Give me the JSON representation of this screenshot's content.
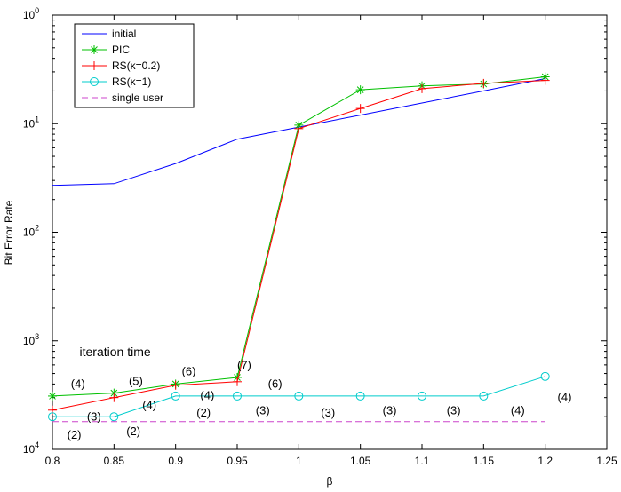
{
  "chart_data": {
    "type": "line",
    "title": "",
    "xlabel": "β",
    "ylabel": "Bit Error Rate",
    "xlim": [
      0.8,
      1.25
    ],
    "ylim": [
      0.0001,
      1
    ],
    "yscale": "log",
    "grid": false,
    "legend_position": "top-left",
    "x_ticks": [
      "0.8",
      "0.85",
      "0.9",
      "0.95",
      "1",
      "1.05",
      "1.1",
      "1.15",
      "1.2",
      "1.25"
    ],
    "y_tick_bases": [
      "10",
      "10",
      "10",
      "10",
      "10"
    ],
    "y_tick_exps": [
      "0",
      "1",
      "2",
      "3",
      "4"
    ],
    "x": [
      0.8,
      0.85,
      0.9,
      0.95,
      1.0,
      1.05,
      1.1,
      1.15,
      1.2
    ],
    "series": [
      {
        "name": "initial",
        "color": "#0000ff",
        "marker": "none",
        "dash": "solid",
        "values": [
          0.027,
          0.028,
          0.043,
          0.072,
          0.093,
          0.12,
          0.155,
          0.2,
          0.26
        ]
      },
      {
        "name": "PIC",
        "color": "#00c000",
        "marker": "star",
        "dash": "solid",
        "values": [
          0.00031,
          0.00033,
          0.0004,
          0.00046,
          0.097,
          0.205,
          0.223,
          0.232,
          0.27
        ]
      },
      {
        "name": "RS(κ=0.2)",
        "color": "#ff0000",
        "marker": "plus",
        "dash": "solid",
        "values": [
          0.00023,
          0.0003,
          0.00039,
          0.00042,
          0.09,
          0.138,
          0.21,
          0.235,
          0.25
        ]
      },
      {
        "name": "RS(κ=1)",
        "color": "#00cccc",
        "marker": "circle",
        "dash": "solid",
        "values": [
          0.0002,
          0.0002,
          0.00031,
          0.00031,
          0.00031,
          0.00031,
          0.00031,
          0.00031,
          0.00047
        ]
      },
      {
        "name": "single user",
        "color": "#cc44cc",
        "marker": "none",
        "dash": "dashed",
        "values": [
          0.00018,
          0.00018,
          0.00018,
          0.00018,
          0.00018,
          0.00018,
          0.00018,
          0.00018,
          0.00018
        ]
      }
    ],
    "annotation_title": "iteration time",
    "annotations": [
      {
        "text": "(4)",
        "x": 0.815,
        "y": 0.00037
      },
      {
        "text": "(5)",
        "x": 0.862,
        "y": 0.00039
      },
      {
        "text": "(6)",
        "x": 0.905,
        "y": 0.00048
      },
      {
        "text": "(7)",
        "x": 0.95,
        "y": 0.00055
      },
      {
        "text": "(6)",
        "x": 0.975,
        "y": 0.00037
      },
      {
        "text": "(3)",
        "x": 0.828,
        "y": 0.000185
      },
      {
        "text": "(4)",
        "x": 0.873,
        "y": 0.000235
      },
      {
        "text": "(4)",
        "x": 0.92,
        "y": 0.00029
      },
      {
        "text": "(2)",
        "x": 0.812,
        "y": 0.000125
      },
      {
        "text": "(2)",
        "x": 0.86,
        "y": 0.000135
      },
      {
        "text": "(2)",
        "x": 0.917,
        "y": 0.0002
      },
      {
        "text": "(3)",
        "x": 0.965,
        "y": 0.00021
      },
      {
        "text": "(3)",
        "x": 1.018,
        "y": 0.0002
      },
      {
        "text": "(3)",
        "x": 1.068,
        "y": 0.00021
      },
      {
        "text": "(3)",
        "x": 1.12,
        "y": 0.00021
      },
      {
        "text": "(4)",
        "x": 1.172,
        "y": 0.00021
      },
      {
        "text": "(4)",
        "x": 1.21,
        "y": 0.00028
      }
    ],
    "annotation_title_pos": {
      "x": 0.822,
      "y": 0.00072
    }
  }
}
